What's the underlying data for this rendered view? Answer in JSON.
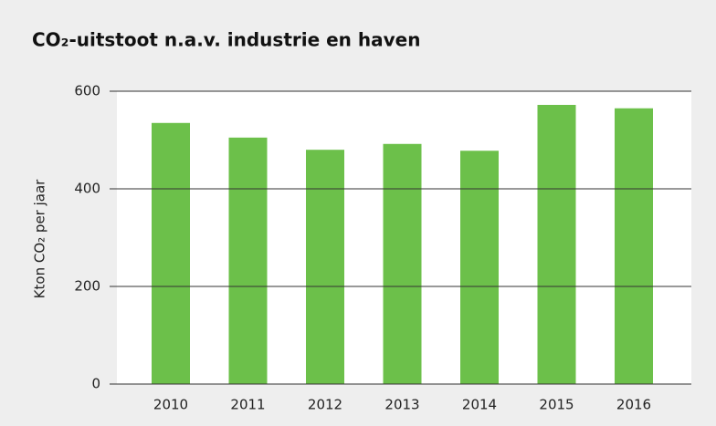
{
  "chart_data": {
    "type": "bar",
    "title": "CO₂-uitstoot n.a.v. industrie en haven",
    "y_label": "Kton CO₂ per jaar",
    "categories": [
      "2010",
      "2011",
      "2012",
      "2013",
      "2014",
      "2015",
      "2016"
    ],
    "values": [
      535,
      505,
      480,
      492,
      478,
      572,
      565
    ],
    "color": "#6cc04a",
    "ylim": [
      0,
      600
    ],
    "yticks": [
      0,
      200,
      400,
      600
    ],
    "grid": true
  }
}
